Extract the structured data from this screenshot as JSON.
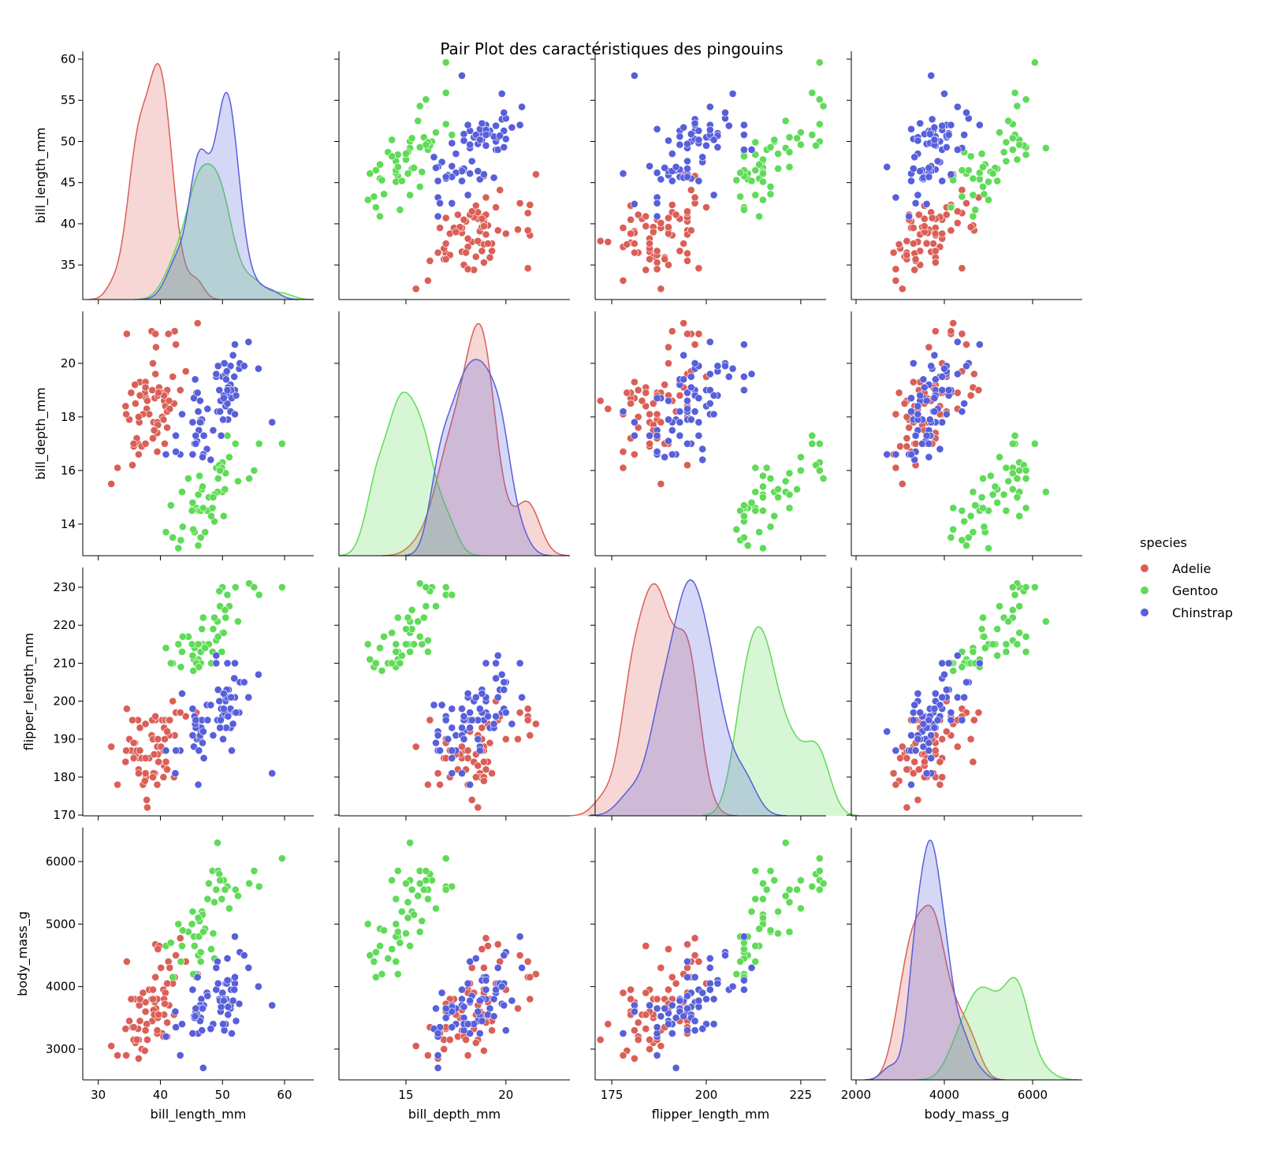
{
  "chart_data": {
    "type": "scatter",
    "subtype": "pair-plot",
    "title": "Pair Plot des caractéristiques des pingouins",
    "variables": [
      "bill_length_mm",
      "bill_depth_mm",
      "flipper_length_mm",
      "body_mass_g"
    ],
    "diagonal": "kde",
    "grid": false,
    "legend": {
      "title": "species",
      "placement": "right",
      "entries": [
        "Adelie",
        "Gentoo",
        "Chinstrap"
      ]
    },
    "colors": {
      "Adelie": "#db5f57",
      "Gentoo": "#5fdb57",
      "Chinstrap": "#575fdb"
    },
    "axis_ranges": {
      "bill_length_mm": [
        27.5,
        64.7
      ],
      "bill_depth_mm": [
        11.65,
        23.2
      ],
      "flipper_length_mm": [
        170.6,
        231.7
      ],
      "body_mass_g": [
        1893,
        7125
      ]
    },
    "y_axis_ranges": {
      "bill_length_mm": [
        30.8,
        60.96
      ],
      "bill_depth_mm": [
        12.82,
        21.94
      ],
      "flipper_length_mm": [
        169.8,
        235.2
      ],
      "body_mass_g": [
        2508,
        6542
      ]
    },
    "x_ticks": {
      "bill_length_mm": [
        30,
        40,
        50,
        60
      ],
      "bill_depth_mm": [
        15,
        20
      ],
      "flipper_length_mm": [
        175,
        200,
        225
      ],
      "body_mass_g": [
        2000,
        4000,
        6000
      ]
    },
    "y_ticks": {
      "bill_length_mm": [
        35,
        40,
        45,
        50,
        55,
        60
      ],
      "bill_depth_mm": [
        14,
        16,
        18,
        20
      ],
      "flipper_length_mm": [
        170,
        180,
        190,
        200,
        210,
        220,
        230
      ],
      "body_mass_g": [
        3000,
        4000,
        5000,
        6000
      ]
    },
    "series": [
      {
        "name": "Adelie",
        "points": [
          [
            39.1,
            18.7,
            181,
            3750
          ],
          [
            39.5,
            17.4,
            186,
            3800
          ],
          [
            40.3,
            18,
            195,
            3250
          ],
          [
            36.7,
            19.3,
            193,
            3450
          ],
          [
            39.3,
            20.6,
            190,
            3650
          ],
          [
            38.9,
            17.8,
            181,
            3625
          ],
          [
            39.2,
            19.6,
            195,
            4675
          ],
          [
            41.1,
            17.6,
            182,
            3200
          ],
          [
            38.6,
            21.2,
            191,
            3800
          ],
          [
            34.6,
            21.1,
            198,
            4400
          ],
          [
            36.6,
            17.8,
            185,
            3700
          ],
          [
            38.7,
            19,
            195,
            3450
          ],
          [
            42.5,
            20.7,
            197,
            4500
          ],
          [
            34.4,
            18.4,
            184,
            3325
          ],
          [
            46,
            21.5,
            194,
            4200
          ],
          [
            37.8,
            18.3,
            174,
            3400
          ],
          [
            37.7,
            18.7,
            180,
            3600
          ],
          [
            35.9,
            19.2,
            189,
            3800
          ],
          [
            38.2,
            18.1,
            185,
            3950
          ],
          [
            38.8,
            17.2,
            180,
            3800
          ],
          [
            35.3,
            18.9,
            187,
            3800
          ],
          [
            40.6,
            18.6,
            183,
            3550
          ],
          [
            40.5,
            17.9,
            187,
            3200
          ],
          [
            37.9,
            18.6,
            172,
            3150
          ],
          [
            40.5,
            18.9,
            180,
            3950
          ],
          [
            39.5,
            16.7,
            178,
            3250
          ],
          [
            37.2,
            18.1,
            178,
            3900
          ],
          [
            39.5,
            17.8,
            188,
            3300
          ],
          [
            40.9,
            18.9,
            184,
            3900
          ],
          [
            36.4,
            17,
            195,
            3325
          ],
          [
            39.2,
            21.1,
            196,
            4150
          ],
          [
            38.8,
            20,
            190,
            3950
          ],
          [
            42.2,
            18.5,
            180,
            3550
          ],
          [
            37.6,
            19.3,
            181,
            3300
          ],
          [
            39.8,
            19.1,
            184,
            4650
          ],
          [
            36.5,
            18,
            182,
            3150
          ],
          [
            40.8,
            18.4,
            195,
            3900
          ],
          [
            36,
            18.5,
            186,
            3100
          ],
          [
            44.1,
            19.7,
            196,
            4400
          ],
          [
            37,
            16.9,
            185,
            3000
          ],
          [
            39.6,
            18.8,
            190,
            4600
          ],
          [
            41.1,
            19,
            182,
            3425
          ],
          [
            37.5,
            18.9,
            179,
            2975
          ],
          [
            42.3,
            21.2,
            191,
            4150
          ],
          [
            39.6,
            17.7,
            186,
            3500
          ],
          [
            40.1,
            18.9,
            188,
            4300
          ],
          [
            35,
            17.9,
            190,
            3450
          ],
          [
            42,
            19.5,
            200,
            4050
          ],
          [
            34.5,
            18.1,
            187,
            2900
          ],
          [
            41.4,
            18.6,
            191,
            3700
          ],
          [
            39,
            17.5,
            186,
            3550
          ],
          [
            40.6,
            18.8,
            193,
            3800
          ],
          [
            36.5,
            16.6,
            181,
            2850
          ],
          [
            37.6,
            19.1,
            194,
            3750
          ],
          [
            35.7,
            16.9,
            185,
            3150
          ],
          [
            41.3,
            21.1,
            195,
            4400
          ],
          [
            37.6,
            17,
            185,
            3600
          ],
          [
            41.1,
            18.2,
            192,
            4050
          ],
          [
            36.2,
            17.2,
            187,
            3150
          ],
          [
            32.1,
            15.5,
            188,
            3050
          ],
          [
            33.1,
            16.1,
            178,
            2900
          ],
          [
            45.8,
            18.9,
            197,
            4150
          ],
          [
            43.2,
            19,
            197,
            4775
          ],
          [
            40.7,
            17,
            190,
            3725
          ],
          [
            39.7,
            18.9,
            184,
            3550
          ],
          [
            35.5,
            16.2,
            195,
            3350
          ],
          [
            35.7,
            17,
            189,
            3350
          ],
          [
            41.5,
            18.3,
            195,
            4300
          ],
          [
            36.7,
            18.8,
            187,
            3800
          ]
        ]
      },
      {
        "name": "Gentoo",
        "points": [
          [
            46.1,
            13.2,
            211,
            4500
          ],
          [
            50,
            16.3,
            230,
            5700
          ],
          [
            48.7,
            14.1,
            210,
            4450
          ],
          [
            50,
            15.2,
            218,
            5700
          ],
          [
            47.6,
            14.5,
            215,
            5400
          ],
          [
            46.5,
            13.5,
            210,
            4550
          ],
          [
            45.4,
            14.6,
            211,
            4800
          ],
          [
            46.7,
            15.3,
            219,
            5200
          ],
          [
            43.3,
            13.4,
            209,
            4400
          ],
          [
            46.8,
            15.4,
            215,
            5150
          ],
          [
            40.9,
            13.7,
            214,
            4650
          ],
          [
            49,
            16.1,
            216,
            5550
          ],
          [
            45.5,
            13.7,
            214,
            4650
          ],
          [
            48.4,
            14.6,
            213,
            5850
          ],
          [
            45.8,
            14.6,
            210,
            4200
          ],
          [
            49.3,
            15.7,
            217,
            5850
          ],
          [
            42,
            13.5,
            210,
            4150
          ],
          [
            49.2,
            15.2,
            221,
            6300
          ],
          [
            46.2,
            14.5,
            209,
            4800
          ],
          [
            48.7,
            15.1,
            222,
            5350
          ],
          [
            50.2,
            14.3,
            218,
            5700
          ],
          [
            45.1,
            14.5,
            215,
            5000
          ],
          [
            46.5,
            14.5,
            213,
            4400
          ],
          [
            46.3,
            15.8,
            215,
            5050
          ],
          [
            42.9,
            13.1,
            215,
            5000
          ],
          [
            46.1,
            15.1,
            215,
            5100
          ],
          [
            47.8,
            15,
            215,
            5650
          ],
          [
            48.2,
            14.3,
            210,
            4600
          ],
          [
            50.5,
            15.9,
            222,
            5550
          ],
          [
            59.6,
            17,
            230,
            6050
          ],
          [
            49.5,
            16.2,
            229,
            5800
          ],
          [
            54.3,
            15.7,
            231,
            5650
          ],
          [
            55.9,
            17,
            228,
            5600
          ],
          [
            55.1,
            16,
            230,
            5850
          ],
          [
            50.8,
            17.3,
            228,
            5600
          ],
          [
            52.1,
            17,
            230,
            5550
          ],
          [
            43.5,
            15.2,
            213,
            4650
          ],
          [
            45.2,
            14.8,
            212,
            5200
          ],
          [
            49.9,
            16.1,
            213,
            5400
          ],
          [
            44.5,
            15.7,
            217,
            4875
          ],
          [
            47.2,
            13.7,
            214,
            4925
          ],
          [
            41.7,
            14.7,
            210,
            4700
          ],
          [
            48.5,
            15,
            219,
            4850
          ],
          [
            43.6,
            13.9,
            217,
            4900
          ],
          [
            51.1,
            16.5,
            225,
            5250
          ],
          [
            45.3,
            13.8,
            208,
            4200
          ],
          [
            49.6,
            16,
            225,
            5700
          ],
          [
            50.4,
            15.3,
            224,
            5550
          ],
          [
            46.9,
            14.6,
            222,
            4875
          ],
          [
            52.5,
            15.6,
            221,
            5450
          ]
        ]
      },
      {
        "name": "Chinstrap",
        "points": [
          [
            46.5,
            17.9,
            192,
            3500
          ],
          [
            50,
            19.5,
            196,
            3900
          ],
          [
            51.3,
            19.2,
            193,
            3650
          ],
          [
            45.4,
            18.7,
            188,
            3525
          ],
          [
            52.7,
            19.8,
            197,
            3725
          ],
          [
            45.2,
            17.8,
            198,
            3950
          ],
          [
            46.1,
            18.2,
            178,
            3250
          ],
          [
            51.3,
            18.2,
            197,
            3750
          ],
          [
            46,
            18.9,
            195,
            4150
          ],
          [
            51.3,
            19.9,
            198,
            3700
          ],
          [
            46.6,
            17.8,
            193,
            3800
          ],
          [
            51.7,
            20.3,
            194,
            3775
          ],
          [
            47,
            17.3,
            185,
            3700
          ],
          [
            52,
            18.1,
            201,
            4050
          ],
          [
            45.9,
            17.1,
            190,
            3575
          ],
          [
            50.5,
            19.6,
            201,
            4050
          ],
          [
            50.3,
            20,
            197,
            3300
          ],
          [
            58,
            17.8,
            181,
            3700
          ],
          [
            46.4,
            18.6,
            190,
            3450
          ],
          [
            49.2,
            18.2,
            195,
            4400
          ],
          [
            42.4,
            17.3,
            181,
            3600
          ],
          [
            48.5,
            17.5,
            191,
            3400
          ],
          [
            43.2,
            16.6,
            187,
            2900
          ],
          [
            50.6,
            19.4,
            193,
            3800
          ],
          [
            46.7,
            17.9,
            195,
            3300
          ],
          [
            52,
            19,
            197,
            4150
          ],
          [
            50.5,
            18.4,
            200,
            3400
          ],
          [
            49.5,
            19,
            200,
            3800
          ],
          [
            46.4,
            17.8,
            191,
            3700
          ],
          [
            52.8,
            20,
            205,
            4550
          ],
          [
            40.9,
            16.6,
            187,
            3200
          ],
          [
            54.2,
            20.8,
            201,
            4300
          ],
          [
            42.5,
            16.7,
            187,
            3350
          ],
          [
            51,
            18.8,
            203,
            4100
          ],
          [
            49.7,
            18.6,
            195,
            3600
          ],
          [
            47.5,
            16.8,
            199,
            3900
          ],
          [
            47.6,
            18.3,
            195,
            3850
          ],
          [
            52,
            20.7,
            210,
            4800
          ],
          [
            46.9,
            16.6,
            192,
            2700
          ],
          [
            53.5,
            19.9,
            205,
            4500
          ],
          [
            49,
            19.5,
            210,
            3950
          ],
          [
            46.2,
            17.5,
            187,
            3650
          ],
          [
            50.9,
            19.1,
            196,
            3550
          ],
          [
            45.5,
            17,
            196,
            3500
          ],
          [
            50.9,
            17.9,
            196,
            3675
          ],
          [
            50.8,
            18.5,
            201,
            4450
          ],
          [
            50.1,
            17.9,
            190,
            3400
          ],
          [
            49,
            19.6,
            212,
            4300
          ],
          [
            51.5,
            18.7,
            187,
            3250
          ],
          [
            49.8,
            17.3,
            198,
            3675
          ],
          [
            48.1,
            16.4,
            199,
            3325
          ],
          [
            51.4,
            19,
            201,
            3950
          ],
          [
            45.7,
            17.3,
            193,
            3600
          ],
          [
            50.7,
            19.7,
            203,
            4050
          ],
          [
            42.5,
            17.3,
            187,
            3350
          ],
          [
            52.2,
            18.8,
            197,
            3450
          ],
          [
            45.2,
            16.6,
            191,
            3250
          ],
          [
            49.3,
            19.9,
            203,
            4050
          ],
          [
            50.2,
            18.8,
            202,
            3800
          ],
          [
            45.6,
            19.4,
            194,
            3525
          ],
          [
            51.9,
            19.5,
            206,
            3950
          ],
          [
            46.8,
            16.5,
            189,
            3650
          ],
          [
            45.7,
            17,
            195,
            3650
          ],
          [
            55.8,
            19.8,
            207,
            4000
          ],
          [
            43.5,
            18.1,
            202,
            3400
          ],
          [
            49.6,
            18.2,
            193,
            3775
          ],
          [
            50.8,
            19,
            210,
            4100
          ],
          [
            50.2,
            18.7,
            198,
            3775
          ]
        ]
      }
    ]
  }
}
